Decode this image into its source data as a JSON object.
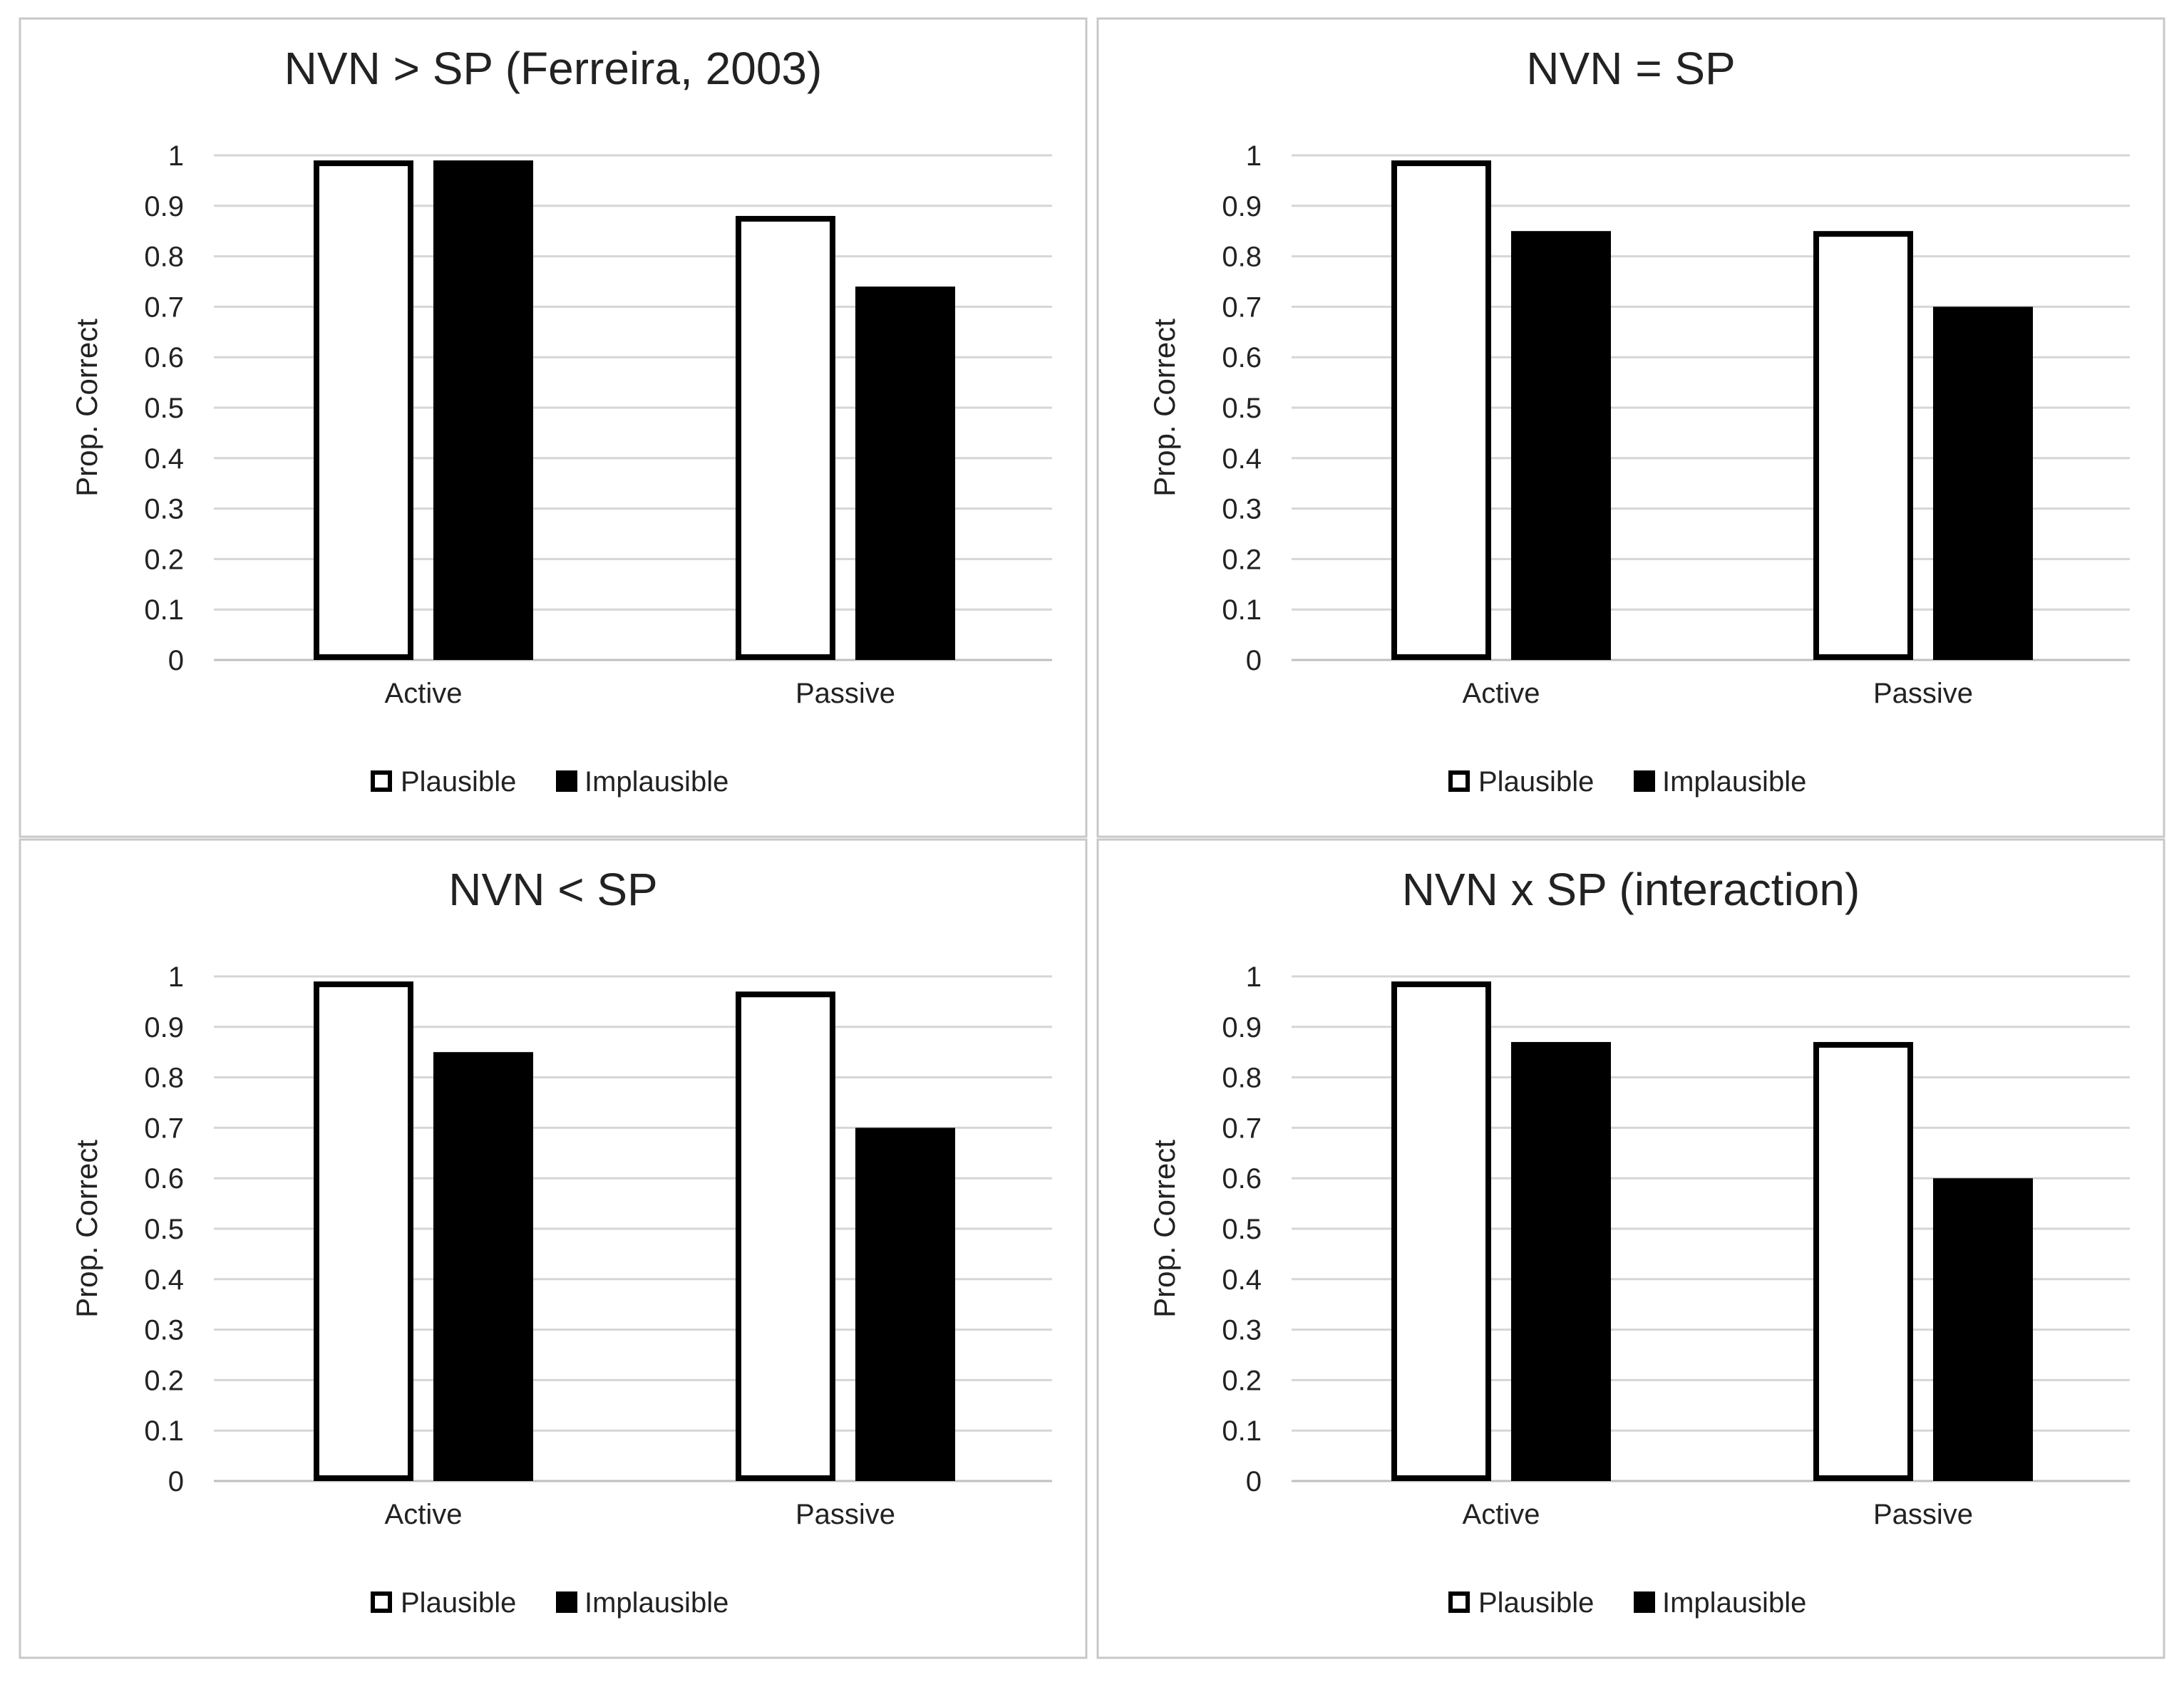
{
  "chart_data": [
    {
      "type": "bar",
      "title": "NVN > SP (Ferreira, 2003)",
      "xlabel": "",
      "ylabel": "Prop. Correct",
      "ylim": [
        0,
        1
      ],
      "yticks": [
        "0",
        "0.1",
        "0.2",
        "0.3",
        "0.4",
        "0.5",
        "0.6",
        "0.7",
        "0.8",
        "0.9",
        "1"
      ],
      "categories": [
        "Active",
        "Passive"
      ],
      "grid": true,
      "legend_position": "bottom",
      "series": [
        {
          "name": "Plausible",
          "color": "#ffffff",
          "stroke": "#000000",
          "values": [
            0.99,
            0.88
          ]
        },
        {
          "name": "Implausible",
          "color": "#000000",
          "stroke": "#000000",
          "values": [
            0.99,
            0.74
          ]
        }
      ]
    },
    {
      "type": "bar",
      "title": "NVN = SP",
      "xlabel": "",
      "ylabel": "Prop. Correct",
      "ylim": [
        0,
        1
      ],
      "yticks": [
        "0",
        "0.1",
        "0.2",
        "0.3",
        "0.4",
        "0.5",
        "0.6",
        "0.7",
        "0.8",
        "0.9",
        "1"
      ],
      "categories": [
        "Active",
        "Passive"
      ],
      "grid": true,
      "legend_position": "bottom",
      "series": [
        {
          "name": "Plausible",
          "color": "#ffffff",
          "stroke": "#000000",
          "values": [
            0.99,
            0.85
          ]
        },
        {
          "name": "Implausible",
          "color": "#000000",
          "stroke": "#000000",
          "values": [
            0.85,
            0.7
          ]
        }
      ]
    },
    {
      "type": "bar",
      "title": "NVN < SP",
      "xlabel": "",
      "ylabel": "Prop. Correct",
      "ylim": [
        0,
        1
      ],
      "yticks": [
        "0",
        "0.1",
        "0.2",
        "0.3",
        "0.4",
        "0.5",
        "0.6",
        "0.7",
        "0.8",
        "0.9",
        "1"
      ],
      "categories": [
        "Active",
        "Passive"
      ],
      "grid": true,
      "legend_position": "bottom",
      "series": [
        {
          "name": "Plausible",
          "color": "#ffffff",
          "stroke": "#000000",
          "values": [
            0.99,
            0.97
          ]
        },
        {
          "name": "Implausible",
          "color": "#000000",
          "stroke": "#000000",
          "values": [
            0.85,
            0.7
          ]
        }
      ]
    },
    {
      "type": "bar",
      "title": "NVN x SP (interaction)",
      "xlabel": "",
      "ylabel": "Prop. Correct",
      "ylim": [
        0,
        1
      ],
      "yticks": [
        "0",
        "0.1",
        "0.2",
        "0.3",
        "0.4",
        "0.5",
        "0.6",
        "0.7",
        "0.8",
        "0.9",
        "1"
      ],
      "categories": [
        "Active",
        "Passive"
      ],
      "grid": true,
      "legend_position": "bottom",
      "series": [
        {
          "name": "Plausible",
          "color": "#ffffff",
          "stroke": "#000000",
          "values": [
            0.99,
            0.87
          ]
        },
        {
          "name": "Implausible",
          "color": "#000000",
          "stroke": "#000000",
          "values": [
            0.87,
            0.6
          ]
        }
      ]
    }
  ]
}
